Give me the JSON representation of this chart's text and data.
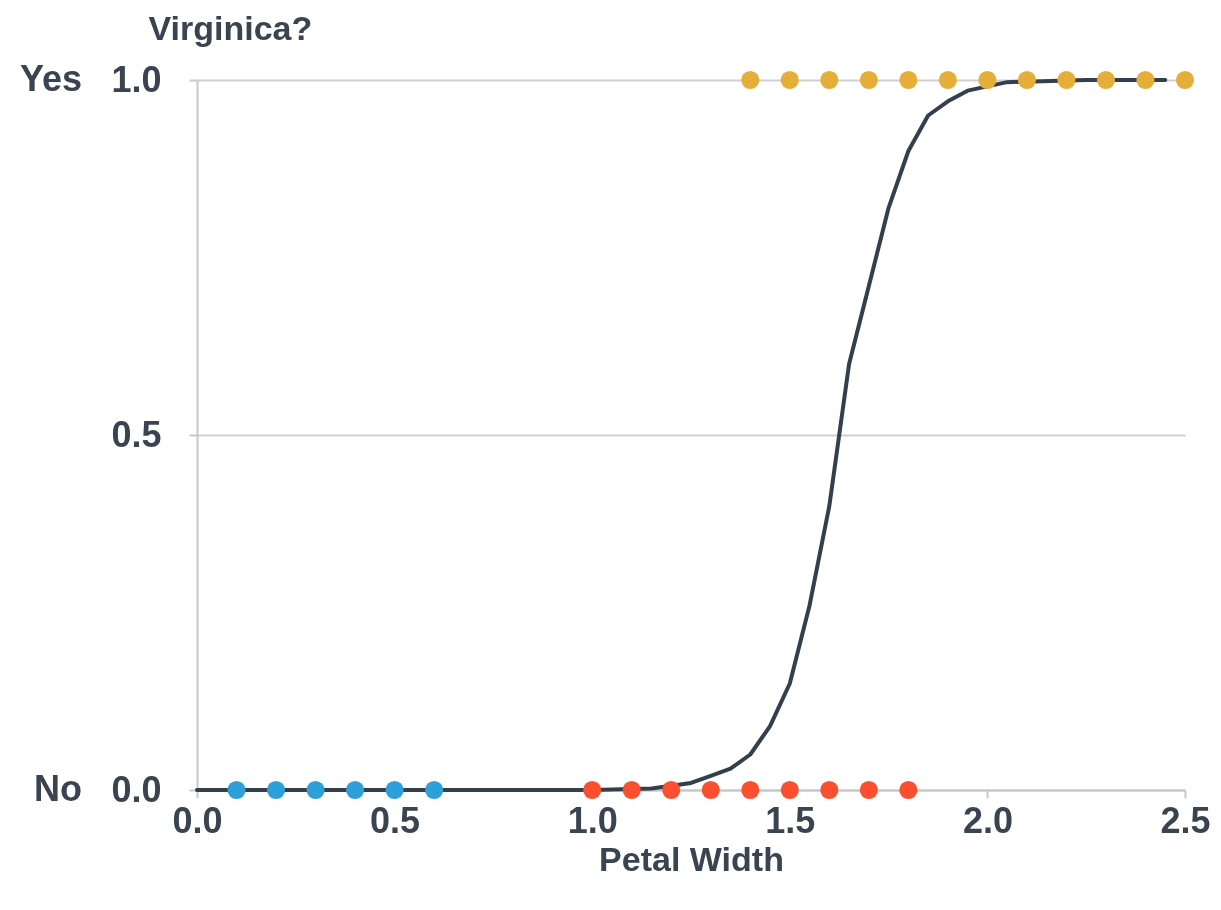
{
  "chart_data": {
    "type": "scatter",
    "xlabel": "Petal Width",
    "ylabel": "Virginica?",
    "xlim": [
      0,
      2.5
    ],
    "xticks": [
      {
        "value": 0,
        "label": "0.0"
      },
      0.5,
      {
        "value": 1,
        "label": "1.0"
      },
      1.5,
      {
        "value": 2,
        "label": "2.0"
      },
      2.5
    ],
    "ylim": [
      0,
      1
    ],
    "yticks": [
      {
        "value": 0,
        "label": "0.0"
      },
      {
        "value": 0.5,
        "label": "0.5"
      },
      {
        "value": 1,
        "label": "1.0"
      }
    ],
    "annotations": [
      "Yes",
      "No"
    ],
    "grid": "y",
    "marker": "circle",
    "series": [
      {
        "type": "line",
        "marker": "none",
        "color": "#333f4c",
        "x": [
          0,
          0.5,
          1.0,
          1.15,
          1.25,
          1.3,
          1.35,
          1.4,
          1.45,
          1.5,
          1.55,
          1.6,
          1.625,
          1.65,
          1.7,
          1.75,
          1.8,
          1.85,
          1.9,
          1.95,
          2.05,
          2.25,
          2.45
        ],
        "values": [
          0,
          0,
          0,
          0.002,
          0.01,
          0.02,
          0.03,
          0.05,
          0.09,
          0.15,
          0.26,
          0.4,
          0.5,
          0.6,
          0.71,
          0.82,
          0.9,
          0.95,
          0.97,
          0.985,
          0.997,
          1,
          1
        ]
      },
      {
        "color": "#2d9fd9",
        "x": [
          0.1,
          0.2,
          0.3,
          0.4,
          0.5,
          0.6
        ],
        "values": [
          0,
          0,
          0,
          0,
          0,
          0
        ]
      },
      {
        "color": "#fc4f30",
        "x": [
          1.0,
          1.1,
          1.2,
          1.3,
          1.4,
          1.5,
          1.6,
          1.7,
          1.8
        ],
        "values": [
          0,
          0,
          0,
          0,
          0,
          0,
          0,
          0,
          0
        ]
      },
      {
        "color": "#e5ae38",
        "x": [
          1.4,
          1.5,
          1.6,
          1.7,
          1.8,
          1.9,
          2.0,
          2.1,
          2.2,
          2.3,
          2.4,
          2.5
        ],
        "values": [
          1,
          1,
          1,
          1,
          1,
          1,
          1,
          1,
          1,
          1,
          1,
          1
        ]
      }
    ]
  }
}
